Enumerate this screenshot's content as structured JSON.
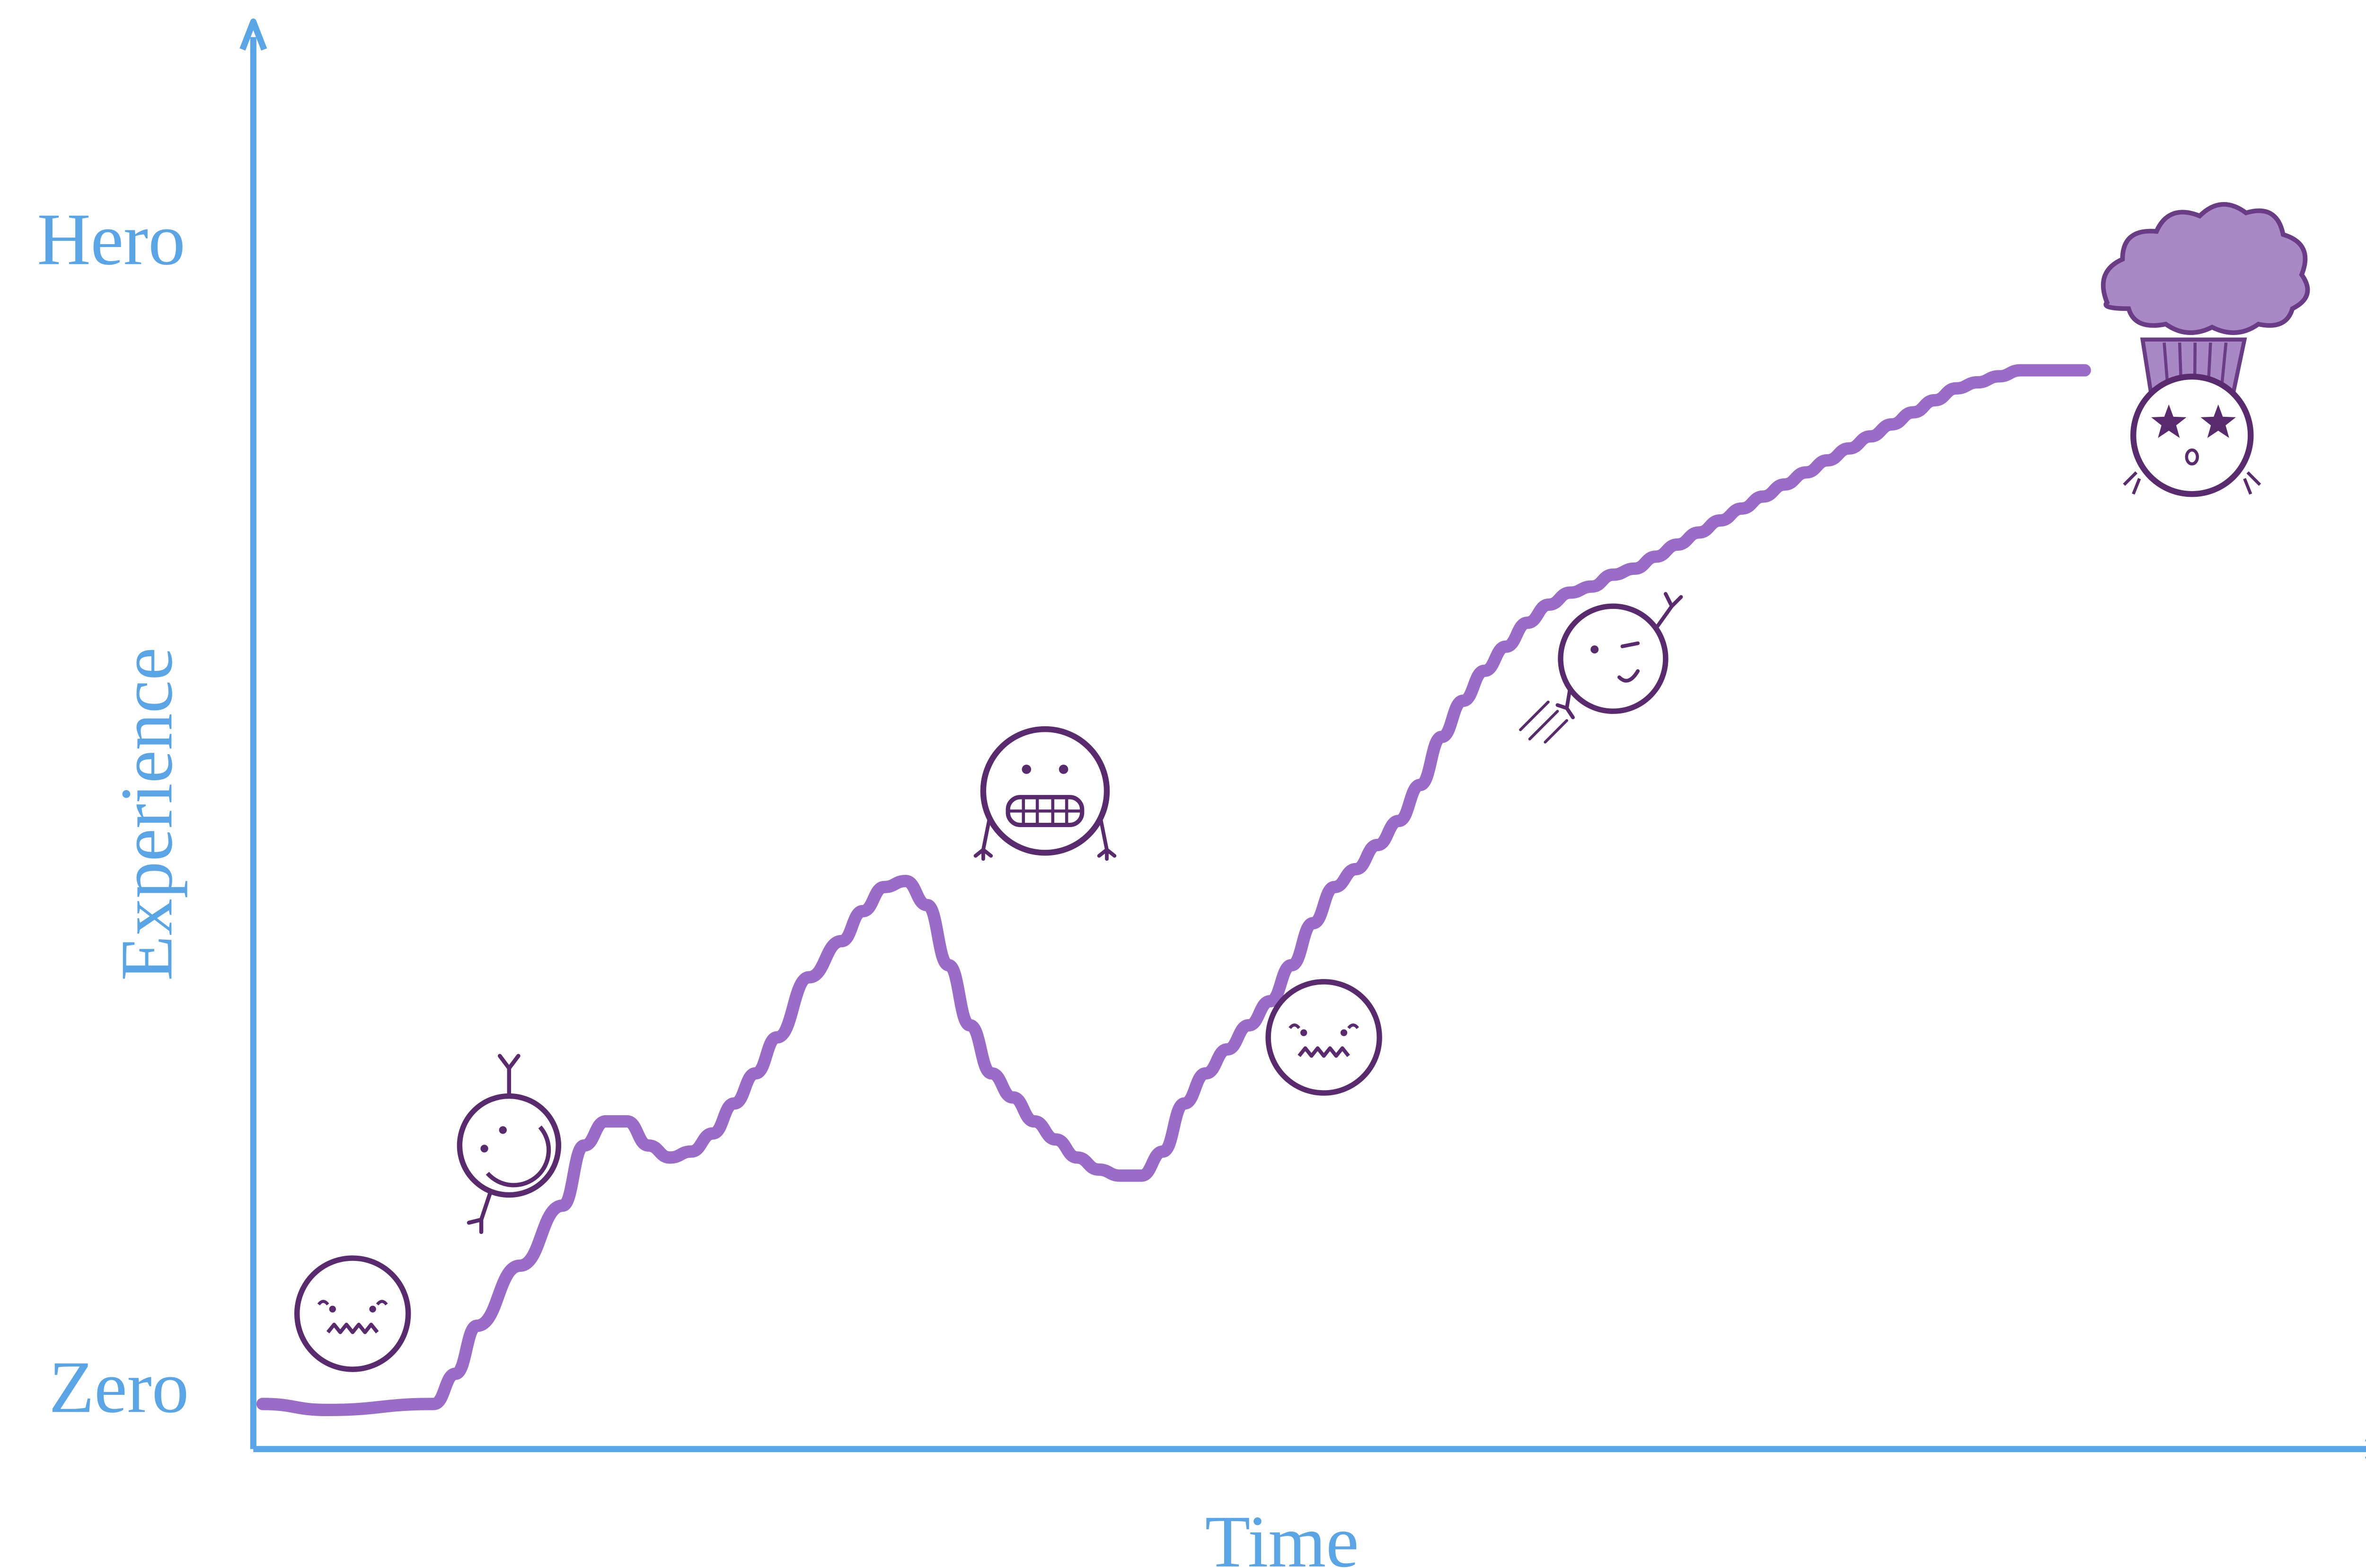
{
  "colors": {
    "axis": "#5aa5e6",
    "curve": "#9b6bc8",
    "face_stroke": "#5a2a6e",
    "hair": "#a889c6",
    "hair_stroke": "#6a3c86"
  },
  "chart_data": {
    "type": "line",
    "title": "",
    "xlabel": "Time",
    "ylabel": "Experience",
    "ytick_labels": {
      "top": "Hero",
      "bottom": "Zero"
    },
    "xlim": [
      0,
      100
    ],
    "ylim": [
      0,
      100
    ],
    "grid": false,
    "legend": "none",
    "series": [
      {
        "x": [
          0,
          3,
          8,
          9,
          10,
          12,
          14,
          15,
          16,
          17,
          18,
          19,
          20,
          21,
          22,
          23,
          24,
          25.5,
          27,
          28,
          29,
          30,
          31,
          32,
          33,
          34,
          35,
          36,
          37,
          38,
          39,
          40,
          41,
          42,
          43,
          44,
          45,
          46,
          47,
          48,
          49,
          50,
          51,
          52,
          53,
          54,
          55,
          56,
          57,
          58,
          59,
          60,
          61,
          62,
          63,
          64,
          65,
          66,
          67,
          68,
          69,
          70,
          71,
          72,
          73,
          74,
          75,
          76,
          77,
          78,
          79,
          80,
          81,
          82,
          83,
          84,
          85
        ],
        "y": [
          3.5,
          3,
          3.5,
          6,
          10,
          15,
          20,
          25,
          27,
          27,
          25,
          24,
          24.5,
          26,
          28.5,
          31,
          34,
          39,
          42,
          44.5,
          46.5,
          47,
          45,
          40,
          35,
          31,
          29,
          27,
          25.5,
          24,
          23,
          22.5,
          22.5,
          24.5,
          28.5,
          31,
          33,
          35,
          37,
          40,
          43.5,
          46.5,
          48,
          50,
          52,
          55,
          59,
          62,
          64.5,
          66.5,
          68.5,
          70,
          71,
          71.5,
          72.5,
          73,
          74,
          75,
          76,
          77,
          78,
          79,
          80,
          81,
          82,
          83,
          84,
          85,
          86,
          87,
          88,
          88.5,
          89,
          89.5,
          89.5,
          89.5,
          89.5
        ]
      }
    ],
    "annotations": [
      {
        "icon": "worried-face-icon",
        "x": 4.2,
        "y": 11
      },
      {
        "icon": "upside-down-waving-face-icon",
        "x": 11.5,
        "y": 25
      },
      {
        "icon": "grimacing-face-icon",
        "x": 36.5,
        "y": 54.5
      },
      {
        "icon": "worried-face-icon",
        "x": 49.5,
        "y": 34
      },
      {
        "icon": "winking-running-face-icon",
        "x": 63,
        "y": 65.5
      },
      {
        "icon": "exploding-head-star-eyes-icon",
        "x": 90,
        "y": 90
      }
    ]
  }
}
